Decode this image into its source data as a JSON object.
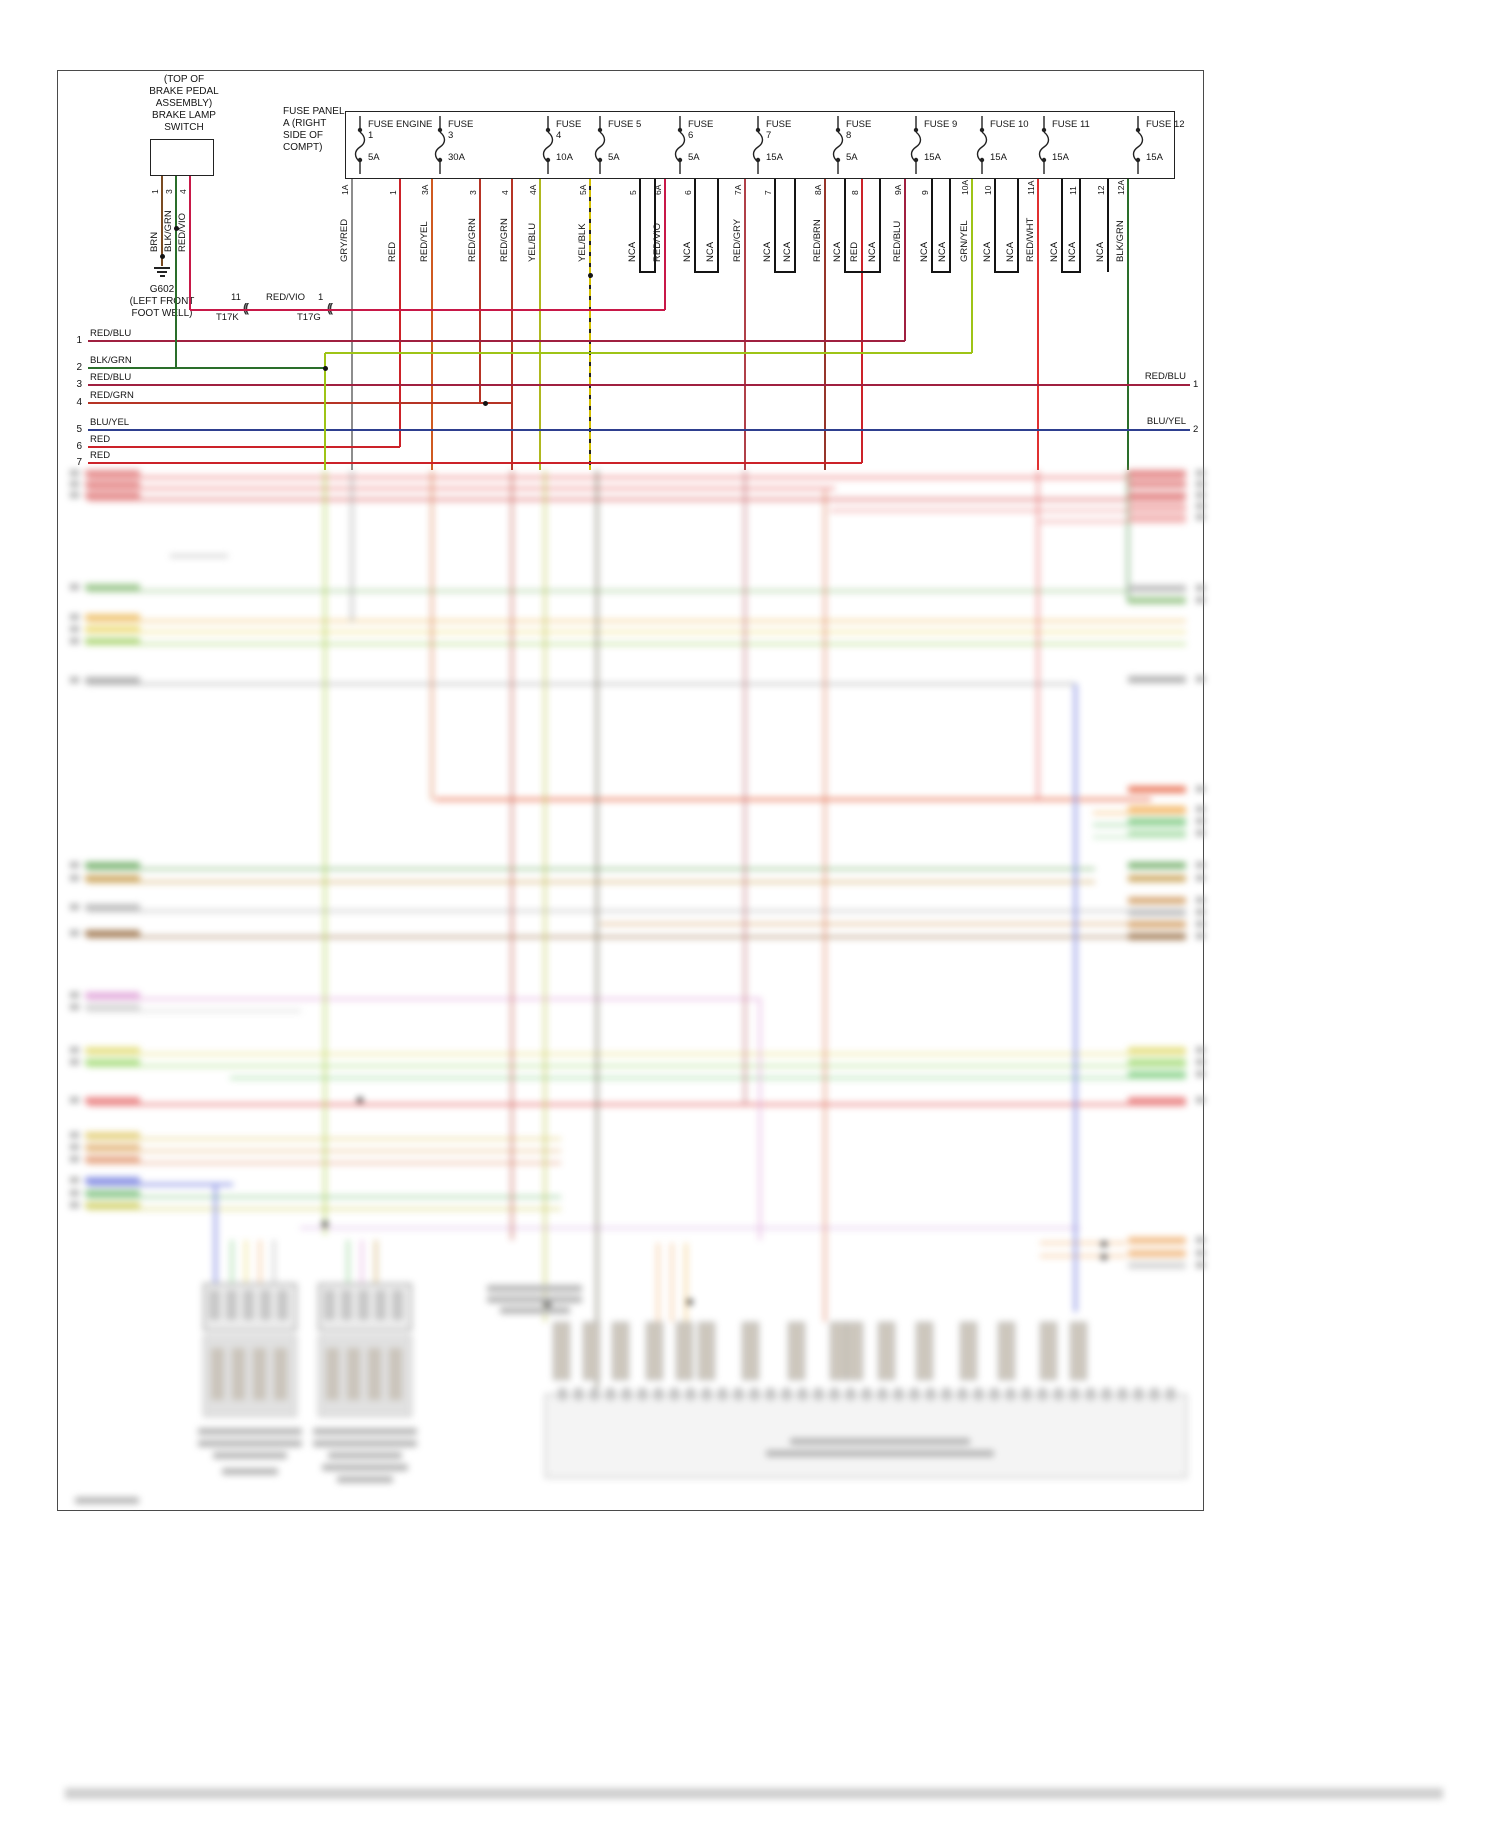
{
  "brake_switch": {
    "location_lines": [
      "(TOP OF",
      "BRAKE PEDAL",
      "ASSEMBLY)"
    ],
    "name_lines": [
      "BRAKE LAMP",
      "SWITCH"
    ],
    "pins": [
      {
        "num": "1",
        "wire": "BRN"
      },
      {
        "num": "3",
        "wire": "BLK/GRN"
      },
      {
        "num": "4",
        "wire": "RED/VIO"
      }
    ]
  },
  "ground": {
    "name": "G602",
    "location_lines": [
      "(LEFT FRONT",
      "FOOT WELL)"
    ]
  },
  "fuse_panel": {
    "label_lines": [
      "FUSE PANEL",
      "A (RIGHT",
      "SIDE OF",
      "COMPT)"
    ],
    "fuses": [
      {
        "name": "FUSE ENGINE",
        "num": "1",
        "amps": "5A"
      },
      {
        "name": "FUSE",
        "num": "3",
        "amps": "30A"
      },
      {
        "name": "FUSE",
        "num": "4",
        "amps": "10A"
      },
      {
        "name": "FUSE 5",
        "num": "",
        "amps": "5A"
      },
      {
        "name": "FUSE",
        "num": "6",
        "amps": "5A"
      },
      {
        "name": "FUSE",
        "num": "7",
        "amps": "15A"
      },
      {
        "name": "FUSE",
        "num": "8",
        "amps": "5A"
      },
      {
        "name": "FUSE 9",
        "num": "",
        "amps": "15A"
      },
      {
        "name": "FUSE 10",
        "num": "",
        "amps": "15A"
      },
      {
        "name": "FUSE 11",
        "num": "",
        "amps": "15A"
      },
      {
        "name": "FUSE 12",
        "num": "",
        "amps": "15A"
      }
    ]
  },
  "outputs": [
    {
      "pin": "1A",
      "wire": "GRY/RED"
    },
    {
      "pin": "1",
      "wire": "RED"
    },
    {
      "pin": "3A",
      "wire": "RED/YEL"
    },
    {
      "pin": "3",
      "wire": "RED/GRN"
    },
    {
      "pin": "4",
      "wire": "RED/GRN"
    },
    {
      "pin": "4A",
      "wire": "YEL/BLU"
    },
    {
      "pin": "5A",
      "wire": "YEL/BLK"
    },
    {
      "pin": "5",
      "wire": "NCA"
    },
    {
      "pin": "",
      "wire": ""
    },
    {
      "pin": "6A",
      "wire": "RED/VIO"
    },
    {
      "pin": "6",
      "wire": "NCA"
    },
    {
      "pin": "",
      "wire": "NCA"
    },
    {
      "pin": "7A",
      "wire": "RED/GRY"
    },
    {
      "pin": "7",
      "wire": "NCA"
    },
    {
      "pin": "",
      "wire": "NCA"
    },
    {
      "pin": "8A",
      "wire": "RED/BRN"
    },
    {
      "pin": "",
      "wire": "NCA"
    },
    {
      "pin": "8",
      "wire": "RED"
    },
    {
      "pin": "",
      "wire": "NCA"
    },
    {
      "pin": "9A",
      "wire": "RED/BLU"
    },
    {
      "pin": "9",
      "wire": "NCA"
    },
    {
      "pin": "",
      "wire": "NCA"
    },
    {
      "pin": "10A",
      "wire": "GRN/YEL"
    },
    {
      "pin": "10",
      "wire": "NCA"
    },
    {
      "pin": "",
      "wire": "NCA"
    },
    {
      "pin": "11A",
      "wire": "RED/WHT"
    },
    {
      "pin": "",
      "wire": "NCA"
    },
    {
      "pin": "11",
      "wire": "NCA"
    },
    {
      "pin": "12",
      "wire": "NCA"
    },
    {
      "pin": "12A",
      "wire": "BLK/GRN"
    }
  ],
  "left_wires": [
    {
      "num": "1",
      "label": "RED/BLU"
    },
    {
      "num": "2",
      "label": "BLK/GRN"
    },
    {
      "num": "3",
      "label": "RED/BLU"
    },
    {
      "num": "4",
      "label": "RED/GRN"
    },
    {
      "num": "5",
      "label": "BLU/YEL"
    },
    {
      "num": "6",
      "label": "RED"
    },
    {
      "num": "7",
      "label": "RED"
    }
  ],
  "right_wires": [
    {
      "num": "1",
      "label": "RED/BLU"
    },
    {
      "num": "2",
      "label": "BLU/YEL"
    }
  ],
  "connector": {
    "left_pin": "11",
    "left_name": "T17K",
    "wire": "RED/VIO",
    "right_pin": "1",
    "right_name": "T17G",
    "symbol": "(("
  },
  "wire_colors": {
    "BRN": "#7a4b22",
    "BLK/GRN": "#2a6e2a",
    "RED/VIO": "#c81848",
    "GRY/RED": "#8d8d8d",
    "RED": "#cc2229",
    "RED/YEL": "#d05a20",
    "RED/GRN": "#b63425",
    "YEL/BLU": "#b0b81e",
    "YEL/BLK": "#d4c000",
    "RED/GRY": "#b04048",
    "RED/BRN": "#96352a",
    "RED/BLU": "#a02040",
    "GRN/YEL": "#9ec416",
    "RED/WHT": "#e03030",
    "BLU/YEL": "#2e3f8f",
    "NCA": "#141414"
  }
}
